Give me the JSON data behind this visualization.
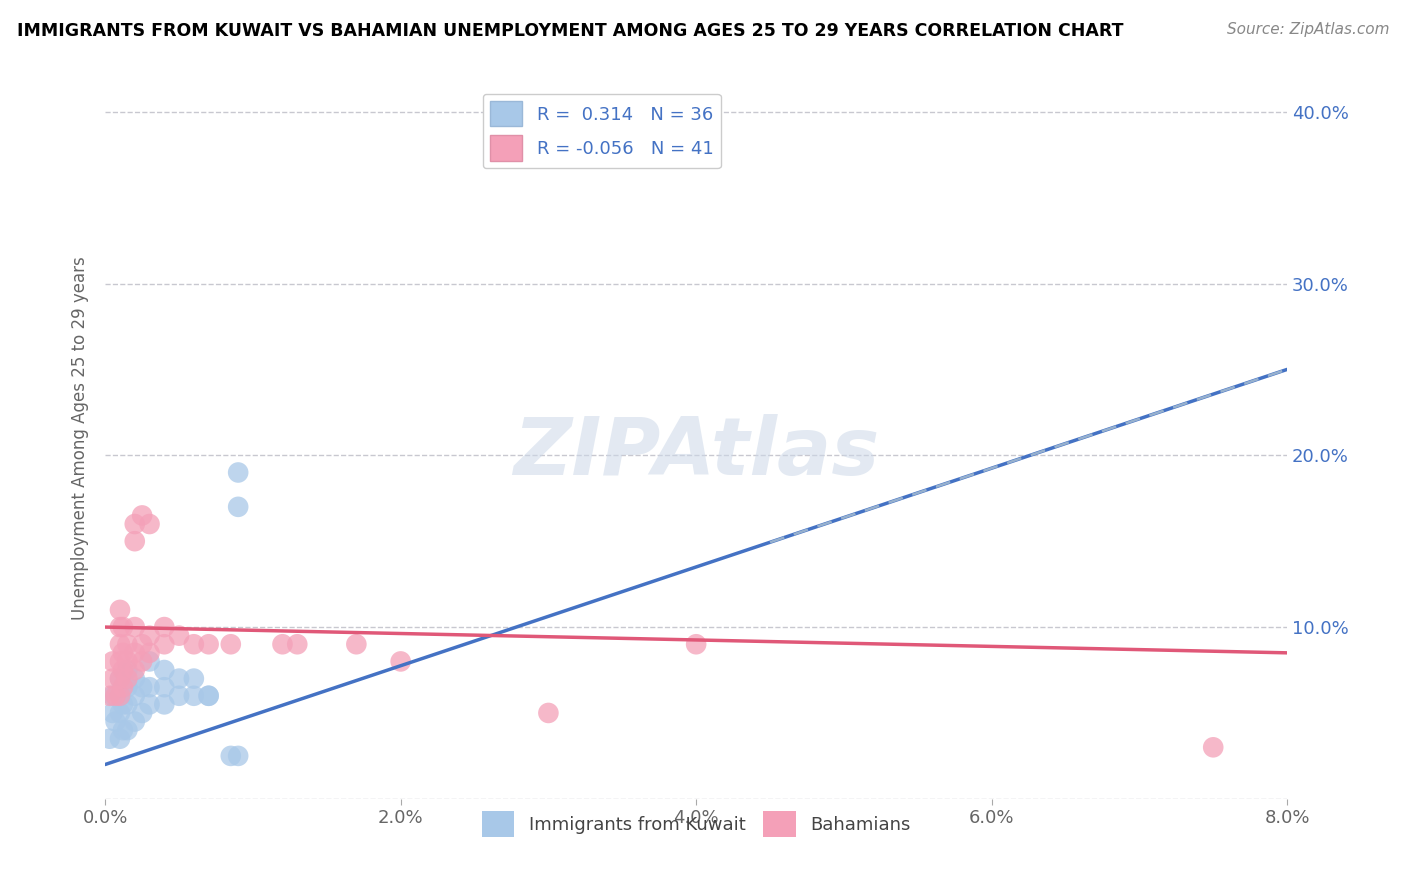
{
  "title": "IMMIGRANTS FROM KUWAIT VS BAHAMIAN UNEMPLOYMENT AMONG AGES 25 TO 29 YEARS CORRELATION CHART",
  "source": "Source: ZipAtlas.com",
  "ylabel": "Unemployment Among Ages 25 to 29 years",
  "legend_labels": [
    "Immigrants from Kuwait",
    "Bahamians"
  ],
  "r_blue": 0.314,
  "n_blue": 36,
  "r_pink": -0.056,
  "n_pink": 41,
  "blue_color": "#a8c8e8",
  "blue_line_color": "#4472C4",
  "pink_color": "#f4a0b8",
  "pink_line_color": "#e05878",
  "dashed_line_color": "#a0b8d0",
  "blue_scatter": [
    [
      0.0003,
      0.035
    ],
    [
      0.0005,
      0.05
    ],
    [
      0.0005,
      0.06
    ],
    [
      0.0007,
      0.045
    ],
    [
      0.001,
      0.035
    ],
    [
      0.001,
      0.05
    ],
    [
      0.001,
      0.06
    ],
    [
      0.001,
      0.07
    ],
    [
      0.0012,
      0.04
    ],
    [
      0.0012,
      0.055
    ],
    [
      0.0012,
      0.065
    ],
    [
      0.0015,
      0.04
    ],
    [
      0.0015,
      0.055
    ],
    [
      0.0015,
      0.065
    ],
    [
      0.0015,
      0.075
    ],
    [
      0.002,
      0.045
    ],
    [
      0.002,
      0.06
    ],
    [
      0.002,
      0.07
    ],
    [
      0.0025,
      0.05
    ],
    [
      0.0025,
      0.065
    ],
    [
      0.003,
      0.055
    ],
    [
      0.003,
      0.065
    ],
    [
      0.003,
      0.08
    ],
    [
      0.004,
      0.055
    ],
    [
      0.004,
      0.065
    ],
    [
      0.004,
      0.075
    ],
    [
      0.005,
      0.06
    ],
    [
      0.005,
      0.07
    ],
    [
      0.006,
      0.06
    ],
    [
      0.006,
      0.07
    ],
    [
      0.007,
      0.06
    ],
    [
      0.007,
      0.06
    ],
    [
      0.0085,
      0.025
    ],
    [
      0.009,
      0.025
    ],
    [
      0.009,
      0.17
    ],
    [
      0.009,
      0.19
    ]
  ],
  "pink_scatter": [
    [
      0.0003,
      0.06
    ],
    [
      0.0005,
      0.07
    ],
    [
      0.0005,
      0.08
    ],
    [
      0.0007,
      0.06
    ],
    [
      0.001,
      0.06
    ],
    [
      0.001,
      0.07
    ],
    [
      0.001,
      0.08
    ],
    [
      0.001,
      0.09
    ],
    [
      0.001,
      0.1
    ],
    [
      0.001,
      0.11
    ],
    [
      0.0012,
      0.065
    ],
    [
      0.0012,
      0.075
    ],
    [
      0.0012,
      0.085
    ],
    [
      0.0012,
      0.1
    ],
    [
      0.0015,
      0.07
    ],
    [
      0.0015,
      0.08
    ],
    [
      0.0015,
      0.09
    ],
    [
      0.002,
      0.075
    ],
    [
      0.002,
      0.085
    ],
    [
      0.002,
      0.1
    ],
    [
      0.002,
      0.15
    ],
    [
      0.002,
      0.16
    ],
    [
      0.0025,
      0.08
    ],
    [
      0.0025,
      0.09
    ],
    [
      0.0025,
      0.165
    ],
    [
      0.003,
      0.085
    ],
    [
      0.003,
      0.095
    ],
    [
      0.003,
      0.16
    ],
    [
      0.004,
      0.09
    ],
    [
      0.004,
      0.1
    ],
    [
      0.005,
      0.095
    ],
    [
      0.006,
      0.09
    ],
    [
      0.007,
      0.09
    ],
    [
      0.0085,
      0.09
    ],
    [
      0.012,
      0.09
    ],
    [
      0.013,
      0.09
    ],
    [
      0.017,
      0.09
    ],
    [
      0.02,
      0.08
    ],
    [
      0.03,
      0.05
    ],
    [
      0.04,
      0.09
    ],
    [
      0.075,
      0.03
    ]
  ],
  "xlim": [
    0.0,
    0.08
  ],
  "ylim": [
    0.0,
    0.42
  ],
  "xticks": [
    0.0,
    0.02,
    0.04,
    0.06,
    0.08
  ],
  "xtick_labels": [
    "0.0%",
    "2.0%",
    "4.0%",
    "6.0%",
    "8.0%"
  ],
  "yticks": [
    0.0,
    0.1,
    0.2,
    0.3,
    0.4
  ],
  "ytick_labels_right": [
    "",
    "10.0%",
    "20.0%",
    "30.0%",
    "40.0%"
  ],
  "watermark": "ZIPAtlas",
  "background_color": "#ffffff",
  "grid_color": "#c8c8d0"
}
